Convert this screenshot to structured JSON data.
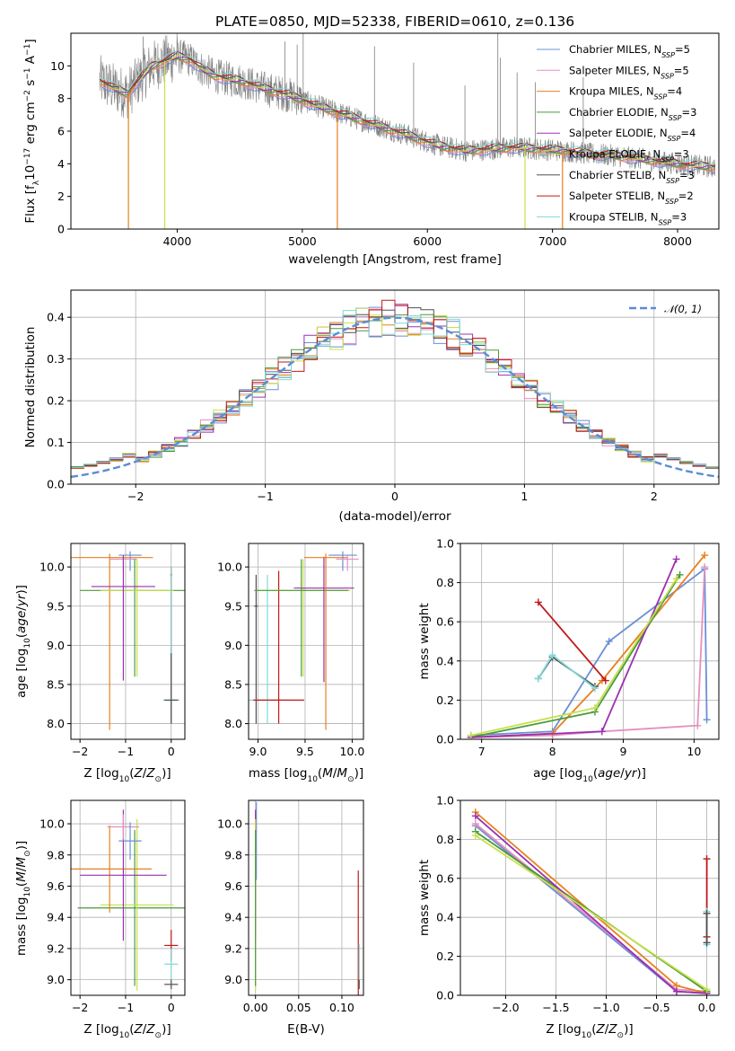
{
  "figure_title": "PLATE=0850, MJD=52338, FIBERID=0610, z=0.136",
  "colors": {
    "data": "#7f7f7f",
    "Chabrier MILES": "#6b8fd6",
    "Salpeter MILES": "#e68fc0",
    "Kroupa MILES": "#e8801f",
    "Chabrier ELODIE": "#4a9a3a",
    "Salpeter ELODIE": "#9b30b0",
    "Kroupa ELODIE": "#c8e04a",
    "Chabrier STELIB": "#505050",
    "Salpeter STELIB": "#c01818",
    "Kroupa STELIB": "#80d8d8",
    "gaussian": "#5b8dd6"
  },
  "chart_data": [
    {
      "id": "spectrum",
      "type": "line",
      "xlabel": "wavelength [Angstrom, rest frame]",
      "ylabel": "Flux [f_λ 10^-17 erg cm^-2 s^-1 A^-1]",
      "xlim": [
        3150,
        8330
      ],
      "ylim": [
        0,
        12
      ],
      "xticks": [
        4000,
        5000,
        6000,
        7000,
        8000
      ],
      "yticks": [
        0,
        2,
        4,
        6,
        8,
        10
      ],
      "legend_position": "top-right",
      "legend": [
        {
          "name": "Chabrier MILES",
          "nssp": "5"
        },
        {
          "name": "Salpeter MILES",
          "nssp": "5"
        },
        {
          "name": "Kroupa MILES",
          "nssp": "4"
        },
        {
          "name": "Chabrier ELODIE",
          "nssp": "3"
        },
        {
          "name": "Salpeter ELODIE",
          "nssp": "4"
        },
        {
          "name": "Kroupa ELODIE",
          "nssp": "3"
        },
        {
          "name": "Chabrier STELIB",
          "nssp": "3"
        },
        {
          "name": "Salpeter STELIB",
          "nssp": "2"
        },
        {
          "name": "Kroupa STELIB",
          "nssp": "3"
        }
      ],
      "continuum": {
        "x": [
          3380,
          3500,
          3600,
          3700,
          3800,
          3900,
          4000,
          4100,
          4200,
          4300,
          4400,
          4500,
          4700,
          4900,
          5100,
          5300,
          5500,
          5700,
          5900,
          6100,
          6300,
          6500,
          6700,
          6900,
          7100,
          7300,
          7500,
          7700,
          7900,
          8100,
          8300
        ],
        "y": [
          9.1,
          8.6,
          8.3,
          9.2,
          10.0,
          10.3,
          10.6,
          10.4,
          9.8,
          9.4,
          9.2,
          9.1,
          8.6,
          8.2,
          7.6,
          7.1,
          6.6,
          6.1,
          5.6,
          5.1,
          4.8,
          4.9,
          5.0,
          4.9,
          4.8,
          4.6,
          4.5,
          4.3,
          4.1,
          3.9,
          3.8
        ]
      },
      "spikes_up": [
        {
          "x": 3727,
          "y": 11.8
        },
        {
          "x": 4861,
          "y": 11.5
        },
        {
          "x": 4959,
          "y": 11.3
        },
        {
          "x": 5007,
          "y": 12.0
        },
        {
          "x": 5577,
          "y": 11.2
        },
        {
          "x": 5890,
          "y": 10.2
        },
        {
          "x": 6300,
          "y": 8.8
        },
        {
          "x": 6563,
          "y": 12.0
        },
        {
          "x": 6583,
          "y": 10.5
        },
        {
          "x": 6717,
          "y": 9.6
        },
        {
          "x": 6863,
          "y": 9.0
        },
        {
          "x": 7246,
          "y": 9.3
        }
      ],
      "spikes_down": [
        {
          "x": 3610,
          "y": 0.0,
          "color": "Kroupa MILES"
        },
        {
          "x": 3900,
          "y": 0.0,
          "color": "Kroupa ELODIE"
        },
        {
          "x": 5280,
          "y": 0.0,
          "color": "Kroupa MILES"
        },
        {
          "x": 6780,
          "y": 0.0,
          "color": "Kroupa ELODIE"
        },
        {
          "x": 7080,
          "y": 0.0,
          "color": "Kroupa MILES"
        }
      ]
    },
    {
      "id": "residual_histogram",
      "type": "area",
      "xlabel": "(data-model)/error",
      "ylabel": "Normed distribution",
      "xlim": [
        -2.5,
        2.5
      ],
      "ylim": [
        0,
        0.465
      ],
      "xticks": [
        -2,
        -1,
        0,
        1,
        2
      ],
      "yticks": [
        0.0,
        0.1,
        0.2,
        0.3,
        0.4
      ],
      "bin_width": 0.1,
      "gaussian_label": "𝒩(0, 1)",
      "legend_position": "top-right",
      "grid": true
    },
    {
      "id": "age_vs_Z",
      "type": "scatter",
      "xlabel": "Z [log10(Z/Z⊙)]",
      "ylabel": "age [log10(age/yr)]",
      "xlim": [
        -2.2,
        0.3
      ],
      "ylim": [
        7.8,
        10.3
      ],
      "xticks": [
        -2,
        -1,
        0
      ],
      "yticks": [
        8.0,
        8.5,
        9.0,
        9.5,
        10.0
      ],
      "grid": true,
      "points": [
        {
          "series": "Kroupa MILES",
          "x": -1.35,
          "y": 10.12,
          "xerr": 0.95,
          "yerr_lo": 2.2,
          "yerr_hi": 0.05
        },
        {
          "series": "Chabrier MILES",
          "x": -0.9,
          "y": 10.15,
          "xerr": 0.25,
          "yerr_lo": 0.2,
          "yerr_hi": 0.05
        },
        {
          "series": "Salpeter MILES",
          "x": -1.05,
          "y": 10.1,
          "xerr": 0.3,
          "yerr_lo": 0.15,
          "yerr_hi": 0.05
        },
        {
          "series": "Chabrier ELODIE",
          "x": -0.8,
          "y": 9.7,
          "xerr": 1.2,
          "yerr_lo": 1.1,
          "yerr_hi": 0.4
        },
        {
          "series": "Kroupa ELODIE",
          "x": -0.75,
          "y": 9.7,
          "xerr": 0.8,
          "yerr_lo": 1.1,
          "yerr_hi": 0.4
        },
        {
          "series": "Salpeter ELODIE",
          "x": -1.05,
          "y": 9.75,
          "xerr": 0.7,
          "yerr_lo": 1.2,
          "yerr_hi": 0.4
        },
        {
          "series": "Salpeter STELIB",
          "x": 0.0,
          "y": 9.9,
          "xerr": 0.02,
          "yerr_lo": 1.9,
          "yerr_hi": 0.1
        },
        {
          "series": "Kroupa STELIB",
          "x": 0.0,
          "y": 8.3,
          "xerr": 0.18,
          "yerr_lo": 0.3,
          "yerr_hi": 1.7
        },
        {
          "series": "Chabrier STELIB",
          "x": 0.0,
          "y": 8.3,
          "xerr": 0.15,
          "yerr_lo": 0.3,
          "yerr_hi": 0.6
        }
      ]
    },
    {
      "id": "age_vs_mass",
      "type": "scatter",
      "xlabel": "mass [log10(M/M⊙)]",
      "ylabel": "",
      "xlim": [
        8.9,
        10.12
      ],
      "ylim": [
        7.8,
        10.3
      ],
      "xticks": [
        9.0,
        9.5,
        10.0
      ],
      "yticks": [
        8.0,
        8.5,
        9.0,
        9.5,
        10.0
      ],
      "grid": true,
      "points": [
        {
          "series": "Chabrier STELIB",
          "x": 8.98,
          "y": 9.5,
          "xerr": 0.02,
          "yerr_lo": 1.5,
          "yerr_hi": 0.4
        },
        {
          "series": "Kroupa STELIB",
          "x": 9.1,
          "y": 8.3,
          "xerr": 0.2,
          "yerr_lo": 0.3,
          "yerr_hi": 1.6
        },
        {
          "series": "Salpeter STELIB",
          "x": 9.22,
          "y": 8.3,
          "xerr": 0.27,
          "yerr_lo": 0.3,
          "yerr_hi": 1.65
        },
        {
          "series": "Kroupa ELODIE",
          "x": 9.48,
          "y": 9.7,
          "xerr": 0.5,
          "yerr_lo": 1.1,
          "yerr_hi": 0.4
        },
        {
          "series": "Chabrier ELODIE",
          "x": 9.46,
          "y": 9.7,
          "xerr": 0.5,
          "yerr_lo": 1.1,
          "yerr_hi": 0.4
        },
        {
          "series": "Salpeter ELODIE",
          "x": 9.7,
          "y": 9.73,
          "xerr": 0.32,
          "yerr_lo": 1.2,
          "yerr_hi": 0.4
        },
        {
          "series": "Kroupa MILES",
          "x": 9.72,
          "y": 10.12,
          "xerr": 0.23,
          "yerr_lo": 2.2,
          "yerr_hi": 0.05
        },
        {
          "series": "Chabrier MILES",
          "x": 9.9,
          "y": 10.15,
          "xerr": 0.15,
          "yerr_lo": 0.2,
          "yerr_hi": 0.05
        },
        {
          "series": "Salpeter MILES",
          "x": 9.95,
          "y": 10.1,
          "xerr": 0.12,
          "yerr_lo": 0.15,
          "yerr_hi": 0.05
        }
      ]
    },
    {
      "id": "mass_weight_vs_age",
      "type": "line",
      "xlabel": "age [log10(age/yr)]",
      "ylabel": "mass weight",
      "xlim": [
        6.7,
        10.35
      ],
      "ylim": [
        0,
        1.0
      ],
      "xticks": [
        7,
        8,
        9,
        10
      ],
      "yticks": [
        0.0,
        0.2,
        0.4,
        0.6,
        0.8,
        1.0
      ],
      "grid": true,
      "series": [
        {
          "name": "Chabrier MILES",
          "x": [
            6.85,
            8.0,
            8.8,
            10.15,
            10.18
          ],
          "y": [
            0.02,
            0.04,
            0.5,
            0.87,
            0.1
          ]
        },
        {
          "name": "Salpeter MILES",
          "x": [
            6.85,
            8.0,
            8.7,
            10.05,
            10.15
          ],
          "y": [
            0.01,
            0.02,
            0.04,
            0.07,
            0.88
          ]
        },
        {
          "name": "Kroupa MILES",
          "x": [
            6.85,
            8.0,
            8.7,
            10.15
          ],
          "y": [
            0.01,
            0.03,
            0.3,
            0.94
          ]
        },
        {
          "name": "Chabrier ELODIE",
          "x": [
            6.85,
            8.6,
            9.8
          ],
          "y": [
            0.01,
            0.14,
            0.84
          ]
        },
        {
          "name": "Salpeter ELODIE",
          "x": [
            6.85,
            8.7,
            9.75
          ],
          "y": [
            0.01,
            0.04,
            0.92
          ]
        },
        {
          "name": "Kroupa ELODIE",
          "x": [
            6.85,
            8.6,
            9.75
          ],
          "y": [
            0.02,
            0.16,
            0.82
          ]
        },
        {
          "name": "Chabrier STELIB",
          "x": [
            7.8,
            8.0,
            8.6
          ],
          "y": [
            0.31,
            0.42,
            0.27
          ]
        },
        {
          "name": "Salpeter STELIB",
          "x": [
            7.8,
            8.75
          ],
          "y": [
            0.7,
            0.3
          ]
        },
        {
          "name": "Kroupa STELIB",
          "x": [
            7.8,
            8.0,
            8.6
          ],
          "y": [
            0.31,
            0.43,
            0.26
          ]
        }
      ]
    },
    {
      "id": "mass_vs_Z",
      "type": "scatter",
      "xlabel": "Z [log10(Z/Z⊙)]",
      "ylabel": "mass [log10(M/M⊙)]",
      "xlim": [
        -2.2,
        0.3
      ],
      "ylim": [
        8.9,
        10.15
      ],
      "xticks": [
        -2,
        -1,
        0
      ],
      "yticks": [
        9.0,
        9.2,
        9.4,
        9.6,
        9.8,
        10.0
      ],
      "grid": true,
      "points": [
        {
          "series": "Chabrier ELODIE",
          "x": -0.8,
          "y": 9.46,
          "xerr": 1.25,
          "yerr": 0.5
        },
        {
          "series": "Kroupa ELODIE",
          "x": -0.75,
          "y": 9.48,
          "xerr": 0.8,
          "yerr": 0.55
        },
        {
          "series": "Kroupa MILES",
          "x": -1.35,
          "y": 9.71,
          "xerr": 0.92,
          "yerr": 0.28
        },
        {
          "series": "Salpeter ELODIE",
          "x": -1.05,
          "y": 9.67,
          "xerr": 0.95,
          "yerr": 0.42
        },
        {
          "series": "Salpeter MILES",
          "x": -1.05,
          "y": 9.98,
          "xerr": 0.35,
          "yerr": 0.08
        },
        {
          "series": "Chabrier MILES",
          "x": -0.9,
          "y": 9.89,
          "xerr": 0.25,
          "yerr": 0.12
        },
        {
          "series": "Salpeter STELIB",
          "x": 0.0,
          "y": 9.22,
          "xerr": 0.15,
          "yerr": 0.1
        },
        {
          "series": "Kroupa STELIB",
          "x": 0.0,
          "y": 9.1,
          "xerr": 0.15,
          "yerr": 0.1
        },
        {
          "series": "Chabrier STELIB",
          "x": 0.0,
          "y": 8.97,
          "xerr": 0.15,
          "yerr": 0.03
        }
      ]
    },
    {
      "id": "mass_vs_EBV",
      "type": "scatter",
      "xlabel": "E(B-V)",
      "ylabel": "",
      "xlim": [
        -0.008,
        0.125
      ],
      "ylim": [
        8.9,
        10.15
      ],
      "xticks": [
        0.0,
        0.05,
        0.1
      ],
      "yticks": [
        9.0,
        9.2,
        9.4,
        9.6,
        9.8,
        10.0
      ],
      "grid": true,
      "points": [
        {
          "series": "Chabrier MILES",
          "x": 0.001,
          "y": 9.89,
          "yerr": 0.25
        },
        {
          "series": "Salpeter MILES",
          "x": 0.0,
          "y": 9.98,
          "yerr": 0.1
        },
        {
          "series": "Kroupa MILES",
          "x": 0.0,
          "y": 9.71,
          "yerr": 0.35
        },
        {
          "series": "Salpeter ELODIE",
          "x": 0.0,
          "y": 9.67,
          "yerr": 0.42
        },
        {
          "series": "Kroupa ELODIE",
          "x": 0.0,
          "y": 9.48,
          "yerr": 0.55
        },
        {
          "series": "Chabrier ELODIE",
          "x": 0.0,
          "y": 9.46,
          "yerr": 0.5
        },
        {
          "series": "Salpeter STELIB",
          "x": 0.119,
          "y": 9.22,
          "yerr": 0.48
        },
        {
          "series": "Kroupa STELIB",
          "x": 0.12,
          "y": 9.1,
          "yerr": 0.13
        },
        {
          "series": "Chabrier STELIB",
          "x": 0.12,
          "y": 8.97,
          "yerr": 0.03
        }
      ]
    },
    {
      "id": "mass_weight_vs_Z",
      "type": "line",
      "xlabel": "Z [log10(Z/Z⊙)]",
      "ylabel": "mass weight",
      "xlim": [
        -2.45,
        0.12
      ],
      "ylim": [
        0,
        1.0
      ],
      "xticks": [
        -2.0,
        -1.5,
        -1.0,
        -0.5,
        0.0
      ],
      "yticks": [
        0.0,
        0.2,
        0.4,
        0.6,
        0.8,
        1.0
      ],
      "grid": true,
      "series": [
        {
          "name": "Chabrier MILES",
          "x": [
            -2.3,
            -0.3,
            0.0
          ],
          "y": [
            0.87,
            0.02,
            0.01
          ]
        },
        {
          "name": "Salpeter MILES",
          "x": [
            -2.3,
            -0.3,
            0.0
          ],
          "y": [
            0.88,
            0.03,
            0.02
          ]
        },
        {
          "name": "Kroupa MILES",
          "x": [
            -2.3,
            -0.3,
            0.0
          ],
          "y": [
            0.94,
            0.05,
            0.01
          ]
        },
        {
          "name": "Chabrier ELODIE",
          "x": [
            -2.3,
            0.0
          ],
          "y": [
            0.84,
            0.02
          ]
        },
        {
          "name": "Salpeter ELODIE",
          "x": [
            -2.3,
            -0.3,
            0.0
          ],
          "y": [
            0.92,
            0.02,
            0.01
          ]
        },
        {
          "name": "Kroupa ELODIE",
          "x": [
            -2.3,
            0.0
          ],
          "y": [
            0.82,
            0.03
          ]
        },
        {
          "name": "Salpeter STELIB",
          "x": [
            0.0,
            0.0
          ],
          "y": [
            0.3,
            0.7
          ]
        },
        {
          "name": "Kroupa STELIB",
          "x": [
            0.0,
            0.0
          ],
          "y": [
            0.26,
            0.43
          ]
        },
        {
          "name": "Chabrier STELIB",
          "x": [
            0.0,
            0.0
          ],
          "y": [
            0.27,
            0.42
          ]
        }
      ]
    }
  ]
}
